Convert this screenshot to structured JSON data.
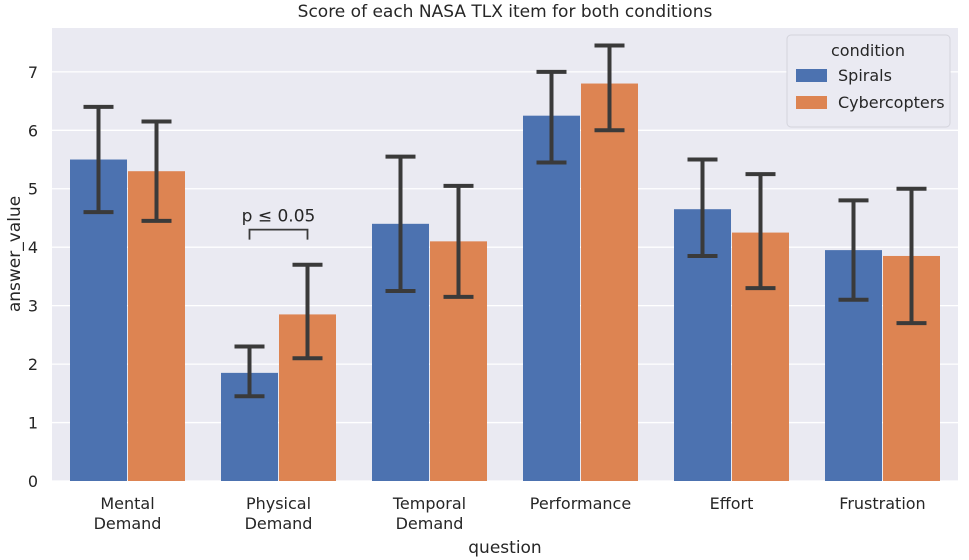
{
  "chart_data": {
    "type": "bar",
    "title": "Score of each NASA TLX item for both conditions",
    "xlabel": "question",
    "ylabel": "answer_value",
    "ylim": [
      0,
      7.75
    ],
    "yticks": [
      0,
      1,
      2,
      3,
      4,
      5,
      6,
      7
    ],
    "grid": true,
    "categories": [
      [
        "Mental",
        "Demand"
      ],
      [
        "Physical",
        "Demand"
      ],
      [
        "Temporal",
        "Demand"
      ],
      [
        "Performance"
      ],
      [
        "Effort"
      ],
      [
        "Frustration"
      ]
    ],
    "series": [
      {
        "name": "Spirals",
        "color": "#4c72b0",
        "values": [
          5.5,
          1.85,
          4.4,
          6.25,
          4.65,
          3.95
        ],
        "error_low": [
          4.6,
          1.45,
          3.25,
          5.45,
          3.85,
          3.1
        ],
        "error_high": [
          6.4,
          2.3,
          5.55,
          7.0,
          5.5,
          4.8
        ]
      },
      {
        "name": "Cybercopters",
        "color": "#dd8452",
        "values": [
          5.3,
          2.85,
          4.1,
          6.8,
          4.25,
          3.85
        ],
        "error_low": [
          4.45,
          2.1,
          3.15,
          6.0,
          3.3,
          2.7
        ],
        "error_high": [
          6.15,
          3.7,
          5.05,
          7.45,
          5.25,
          5.0
        ]
      }
    ],
    "legend": {
      "title": "condition",
      "position": "top-right"
    },
    "annotations": [
      {
        "text": "p ≤ 0.05",
        "category_index": 1,
        "y": 4.3
      }
    ],
    "colors": {
      "plot_background": "#eaeaf2",
      "grid": "#ffffff",
      "error_bar": "#3a3a3a"
    }
  }
}
